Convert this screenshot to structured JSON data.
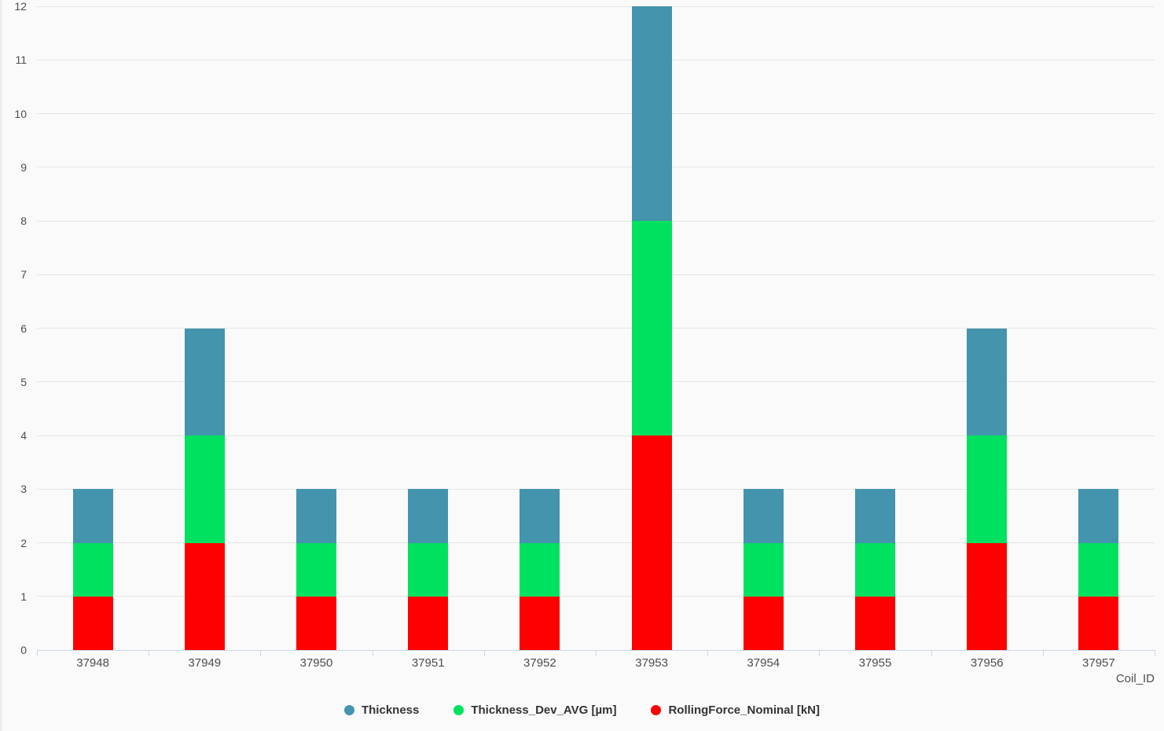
{
  "chart_data": {
    "type": "bar",
    "stacked": true,
    "title": "",
    "xlabel": "Coil_ID",
    "ylabel": "",
    "ylim": [
      0,
      12
    ],
    "ytick_step": 1,
    "grid": true,
    "categories": [
      "37948",
      "37949",
      "37950",
      "37951",
      "37952",
      "37953",
      "37954",
      "37955",
      "37956",
      "37957"
    ],
    "series": [
      {
        "name": "RollingForce_Nominal [kN]",
        "color": "#ff0000",
        "stack_position": "bottom",
        "values": [
          1,
          2,
          1,
          1,
          1,
          4,
          1,
          1,
          2,
          1
        ]
      },
      {
        "name": "Thickness_Dev_AVG [µm]",
        "color": "#00e25f",
        "stack_position": "middle",
        "values": [
          1,
          2,
          1,
          1,
          1,
          4,
          1,
          1,
          2,
          1
        ]
      },
      {
        "name": "Thickness",
        "color": "#4394ac",
        "stack_position": "top",
        "values": [
          1,
          2,
          1,
          1,
          1,
          4,
          1,
          1,
          2,
          1
        ]
      }
    ],
    "stack_totals": [
      3,
      6,
      3,
      3,
      3,
      12,
      3,
      3,
      6,
      3
    ],
    "legend": {
      "position": "bottom-center",
      "items": [
        {
          "label": "Thickness",
          "color": "#4394ac"
        },
        {
          "label": "Thickness_Dev_AVG [µm]",
          "color": "#00e25f"
        },
        {
          "label": "RollingForce_Nominal [kN]",
          "color": "#ff0000"
        }
      ]
    },
    "colors": {
      "background": "#fafafa",
      "gridline": "#e6e6e6",
      "axis_line": "#ccd6eb",
      "axis_label": "#4d4d4d",
      "legend_text": "#333333"
    }
  }
}
